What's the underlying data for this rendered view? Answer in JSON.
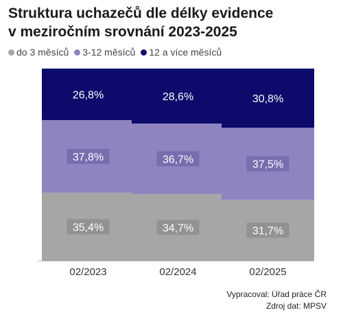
{
  "header": {
    "title_line1": "Struktura uchazečů dle délky evidence",
    "title_line2": "v meziročním srovnání 2023-2025"
  },
  "footer": {
    "author": "Vypracoval: Úřad práce ČR",
    "source": "Zdroj dat: MPSV"
  },
  "chart_data": {
    "type": "bar",
    "stacked": true,
    "categories": [
      "02/2023",
      "02/2024",
      "02/2025"
    ],
    "series": [
      {
        "name": "do 3 měsíců",
        "values": [
          35.4,
          34.7,
          31.7
        ],
        "labels": [
          "35,4%",
          "34,7%",
          "31,7%"
        ],
        "color": "#a6a6a6"
      },
      {
        "name": "3-12 měsíců",
        "values": [
          37.8,
          36.7,
          37.5
        ],
        "labels": [
          "37,8%",
          "36,7%",
          "37,5%"
        ],
        "color": "#8f84c0"
      },
      {
        "name": "12 a více měsíců",
        "values": [
          26.8,
          28.6,
          30.8
        ],
        "labels": [
          "26,8%",
          "28,6%",
          "30,8%"
        ],
        "color": "#0c0a6b"
      }
    ],
    "ylim": [
      0,
      100
    ],
    "grid": false,
    "legend": "top-left"
  }
}
